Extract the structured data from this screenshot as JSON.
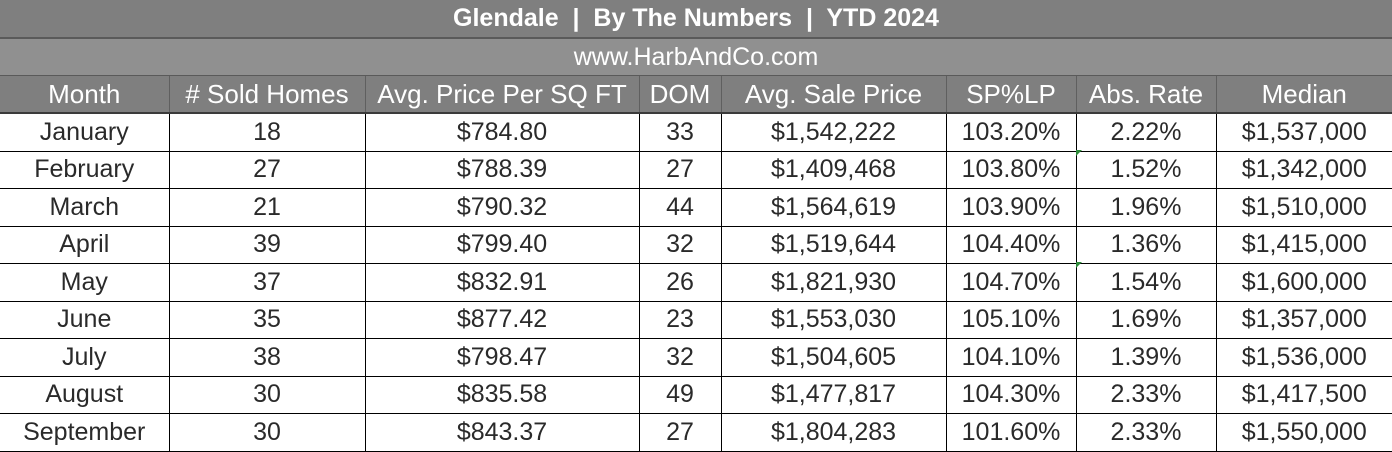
{
  "report": {
    "title": "Glendale  |  By The Numbers  |  YTD 2024",
    "website": "www.HarbAndCo.com"
  },
  "table": {
    "headers": [
      "Month",
      "# Sold Homes",
      "Avg. Price Per SQ FT",
      "DOM",
      "Avg. Sale Price",
      "SP%LP",
      "Abs. Rate",
      "Median"
    ],
    "rows": [
      [
        "January",
        "18",
        "$784.80",
        "33",
        "$1,542,222",
        "103.20%",
        "2.22%",
        "$1,537,000"
      ],
      [
        "February",
        "27",
        "$788.39",
        "27",
        "$1,409,468",
        "103.80%",
        "1.52%",
        "$1,342,000"
      ],
      [
        "March",
        "21",
        "$790.32",
        "44",
        "$1,564,619",
        "103.90%",
        "1.96%",
        "$1,510,000"
      ],
      [
        "April",
        "39",
        "$799.40",
        "32",
        "$1,519,644",
        "104.40%",
        "1.36%",
        "$1,415,000"
      ],
      [
        "May",
        "37",
        "$832.91",
        "26",
        "$1,821,930",
        "104.70%",
        "1.54%",
        "$1,600,000"
      ],
      [
        "June",
        "35",
        "$877.42",
        "23",
        "$1,553,030",
        "105.10%",
        "1.69%",
        "$1,357,000"
      ],
      [
        "July",
        "38",
        "$798.47",
        "32",
        "$1,504,605",
        "104.10%",
        "1.39%",
        "$1,536,000"
      ],
      [
        "August",
        "30",
        "$835.58",
        "49",
        "$1,477,817",
        "104.30%",
        "2.33%",
        "$1,417,500"
      ],
      [
        "September",
        "30",
        "$843.37",
        "27",
        "$1,804,283",
        "101.60%",
        "2.33%",
        "$1,550,000"
      ]
    ]
  },
  "colors": {
    "header_bg": "#7f7f7f",
    "cell_border": "#000000",
    "comment_flag": "#2e8b3a"
  }
}
